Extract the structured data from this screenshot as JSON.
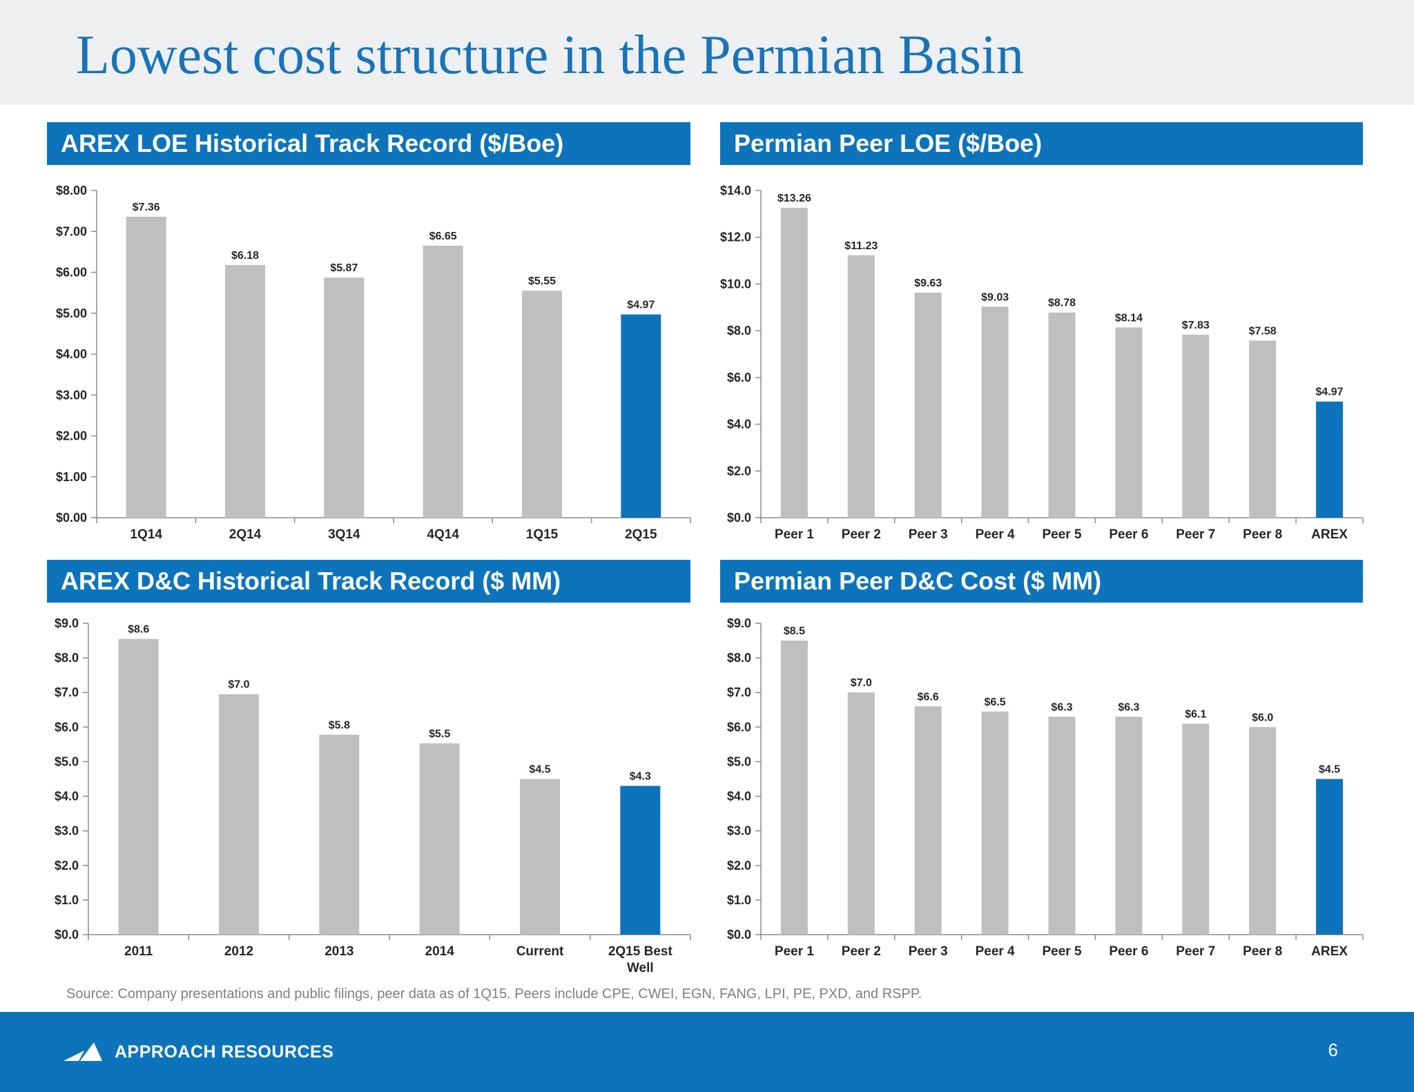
{
  "title": "Lowest cost structure in the Permian Basin",
  "colors": {
    "accent": "#0d74bb",
    "bar_default": "#bfbfc1",
    "bar_highlight": "#0d74bb",
    "title": "#1a73b8"
  },
  "chart_data": [
    {
      "id": "arex-loe",
      "type": "bar",
      "title": "AREX LOE Historical Track Record ($/Boe)",
      "categories": [
        "1Q14",
        "2Q14",
        "3Q14",
        "4Q14",
        "1Q15",
        "2Q15"
      ],
      "values": [
        7.36,
        6.18,
        5.87,
        6.65,
        5.55,
        4.97
      ],
      "data_labels": [
        "$7.36",
        "$6.18",
        "$5.87",
        "$6.65",
        "$5.55",
        "$4.97"
      ],
      "highlight_index": 5,
      "ylim": [
        0,
        8
      ],
      "yticks": [
        0,
        1,
        2,
        3,
        4,
        5,
        6,
        7,
        8
      ],
      "ytick_labels": [
        "$0.00",
        "$1.00",
        "$2.00",
        "$3.00",
        "$4.00",
        "$5.00",
        "$6.00",
        "$7.00",
        "$8.00"
      ],
      "xlabel": "",
      "ylabel": ""
    },
    {
      "id": "peer-loe",
      "type": "bar",
      "title": "Permian Peer LOE ($/Boe)",
      "categories": [
        "Peer 1",
        "Peer 2",
        "Peer 3",
        "Peer 4",
        "Peer 5",
        "Peer 6",
        "Peer 7",
        "Peer 8",
        "AREX"
      ],
      "values": [
        13.26,
        11.23,
        9.63,
        9.03,
        8.78,
        8.14,
        7.83,
        7.58,
        4.97
      ],
      "data_labels": [
        "$13.26",
        "$11.23",
        "$9.63",
        "$9.03",
        "$8.78",
        "$8.14",
        "$7.83",
        "$7.58",
        "$4.97"
      ],
      "highlight_index": 8,
      "ylim": [
        0,
        14
      ],
      "yticks": [
        0,
        2,
        4,
        6,
        8,
        10,
        12,
        14
      ],
      "ytick_labels": [
        "$0.0",
        "$2.0",
        "$4.0",
        "$6.0",
        "$8.0",
        "$10.0",
        "$12.0",
        "$14.0"
      ],
      "xlabel": "",
      "ylabel": ""
    },
    {
      "id": "arex-dc",
      "type": "bar",
      "title": "AREX D&C Historical Track Record ($ MM)",
      "categories": [
        "2011",
        "2012",
        "2013",
        "2014",
        "Current",
        "2Q15 Best Well"
      ],
      "category_lines": [
        [
          "2011"
        ],
        [
          "2012"
        ],
        [
          "2013"
        ],
        [
          "2014"
        ],
        [
          "Current"
        ],
        [
          "2Q15 Best",
          "Well"
        ]
      ],
      "values": [
        8.55,
        6.95,
        5.78,
        5.53,
        4.5,
        4.3
      ],
      "data_labels": [
        "$8.6",
        "$7.0",
        "$5.8",
        "$5.5",
        "$4.5",
        "$4.3"
      ],
      "highlight_index": 5,
      "ylim": [
        0,
        9
      ],
      "yticks": [
        0,
        1,
        2,
        3,
        4,
        5,
        6,
        7,
        8,
        9
      ],
      "ytick_labels": [
        "$0.0",
        "$1.0",
        "$2.0",
        "$3.0",
        "$4.0",
        "$5.0",
        "$6.0",
        "$7.0",
        "$8.0",
        "$9.0"
      ],
      "xlabel": "",
      "ylabel": ""
    },
    {
      "id": "peer-dc",
      "type": "bar",
      "title": "Permian Peer D&C Cost ($ MM)",
      "categories": [
        "Peer 1",
        "Peer 2",
        "Peer 3",
        "Peer 4",
        "Peer 5",
        "Peer 6",
        "Peer 7",
        "Peer 8",
        "AREX"
      ],
      "values": [
        8.5,
        7.0,
        6.6,
        6.45,
        6.3,
        6.3,
        6.1,
        6.0,
        4.5
      ],
      "data_labels": [
        "$8.5",
        "$7.0",
        "$6.6",
        "$6.5",
        "$6.3",
        "$6.3",
        "$6.1",
        "$6.0",
        "$4.5"
      ],
      "highlight_index": 8,
      "ylim": [
        0,
        9
      ],
      "yticks": [
        0,
        1,
        2,
        3,
        4,
        5,
        6,
        7,
        8,
        9
      ],
      "ytick_labels": [
        "$0.0",
        "$1.0",
        "$2.0",
        "$3.0",
        "$4.0",
        "$5.0",
        "$6.0",
        "$7.0",
        "$8.0",
        "$9.0"
      ],
      "xlabel": "",
      "ylabel": ""
    }
  ],
  "source_note": "Source: Company presentations and public filings, peer data as of 1Q15.  Peers include CPE, CWEI, EGN, FANG, LPI, PE, PXD, and RSPP.",
  "footer": {
    "company": "APPROACH RESOURCES",
    "page_number": "6",
    "logo_icon": "approach-logo-icon"
  }
}
